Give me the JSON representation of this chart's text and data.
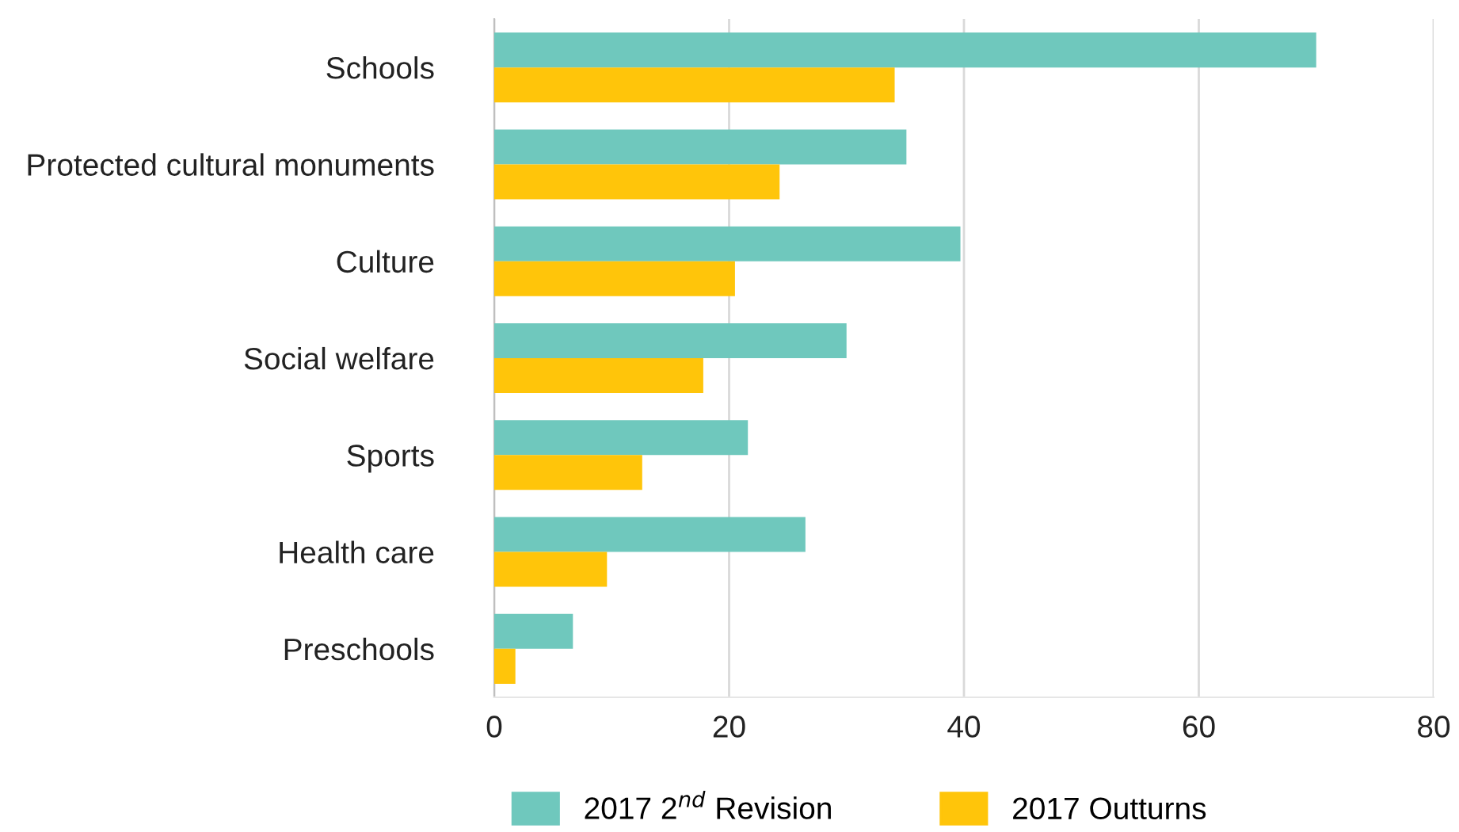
{
  "chart_data": {
    "type": "bar",
    "orientation": "horizontal",
    "categories": [
      "Schools",
      "Protected cultural monuments",
      "Culture",
      "Social welfare",
      "Sports",
      "Health care",
      "Preschools"
    ],
    "series": [
      {
        "name": "2017 2$^{nd}$ Revision",
        "color": "#6fc8bd",
        "values": [
          70.0,
          35.1,
          39.7,
          30.0,
          21.6,
          26.5,
          6.7
        ]
      },
      {
        "name": "2017 Outturns",
        "color": "#ffc50a",
        "values": [
          34.1,
          24.3,
          20.5,
          17.8,
          12.6,
          9.6,
          1.8
        ]
      }
    ],
    "xlim": [
      0,
      80
    ],
    "xticks": [
      0,
      20,
      40,
      60,
      80
    ],
    "grid": "x",
    "legend": "bottom"
  }
}
